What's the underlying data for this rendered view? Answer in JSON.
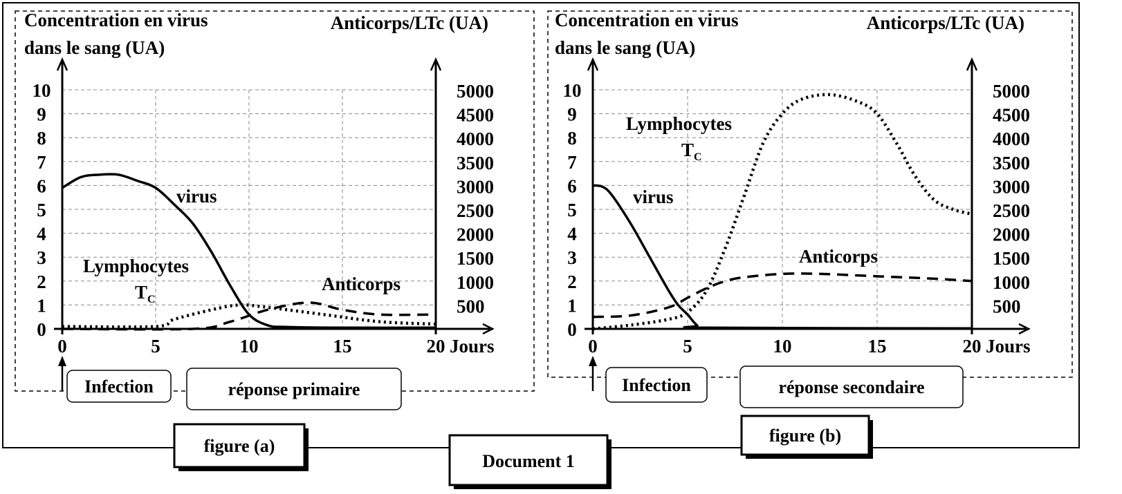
{
  "document_label": "Document 1",
  "chart_data": [
    {
      "type": "line",
      "caption": "figure (a)",
      "ylabel_left": [
        "Concentration en virus",
        "dans le sang (UA)"
      ],
      "ylabel_right": "Anticorps/LTc (UA)",
      "xlabel": "Jours",
      "xlim": [
        0,
        20
      ],
      "ylim_left": [
        0,
        10
      ],
      "ylim_right": [
        0,
        5000
      ],
      "x_ticks": [
        "0",
        "5",
        "10",
        "15",
        "20"
      ],
      "y_left_ticks": [
        "0",
        "1",
        "2",
        "3",
        "4",
        "5",
        "6",
        "7",
        "8",
        "9",
        "10"
      ],
      "y_right_ticks": [
        "500",
        "1000",
        "1500",
        "2000",
        "2500",
        "3000",
        "3500",
        "4000",
        "4500",
        "5000"
      ],
      "grid": true,
      "annotations": {
        "infection": "Infection",
        "phase": "réponse primaire"
      },
      "series": [
        {
          "name": "virus",
          "axis": "left",
          "style": "solid",
          "x": [
            0,
            1,
            2,
            3,
            4,
            5,
            6,
            7,
            8,
            9,
            10,
            11,
            12,
            15,
            20
          ],
          "y": [
            5.9,
            6.35,
            6.45,
            6.45,
            6.2,
            5.9,
            5.2,
            4.4,
            3.2,
            1.8,
            0.6,
            0.15,
            0.08,
            0.05,
            0.05
          ]
        },
        {
          "name": "Lymphocytes",
          "subscript": "C",
          "prefix": "T",
          "axis": "right",
          "style": "dotted",
          "x": [
            0,
            5,
            6,
            8,
            9.5,
            11,
            14,
            17,
            20
          ],
          "y": [
            50,
            50,
            200,
            400,
            500,
            450,
            300,
            150,
            100
          ]
        },
        {
          "name": "Anticorps",
          "axis": "right",
          "style": "dashed",
          "x": [
            0,
            7,
            9,
            11,
            13.2,
            15,
            17,
            20
          ],
          "y": [
            0,
            0,
            150,
            400,
            550,
            400,
            300,
            300
          ]
        }
      ]
    },
    {
      "type": "line",
      "caption": "figure (b)",
      "ylabel_left": [
        "Concentration en virus",
        "dans le sang (UA)"
      ],
      "ylabel_right": "Anticorps/LTc (UA)",
      "xlabel": "Jours",
      "xlim": [
        0,
        20
      ],
      "ylim_left": [
        0,
        10
      ],
      "ylim_right": [
        0,
        5000
      ],
      "x_ticks": [
        "0",
        "5",
        "10",
        "15",
        "20"
      ],
      "y_left_ticks": [
        "0",
        "1",
        "2",
        "3",
        "4",
        "5",
        "6",
        "7",
        "8",
        "9",
        "10"
      ],
      "y_right_ticks": [
        "500",
        "1000",
        "1500",
        "2000",
        "2500",
        "3000",
        "3500",
        "4000",
        "4500",
        "5000"
      ],
      "grid": true,
      "annotations": {
        "infection": "Infection",
        "phase": "réponse secondaire"
      },
      "series": [
        {
          "name": "virus",
          "axis": "left",
          "style": "solid",
          "x": [
            0,
            0.5,
            1,
            2,
            3,
            4,
            4.5,
            5,
            5.5,
            6,
            20
          ],
          "y": [
            6,
            5.95,
            5.6,
            4.4,
            3,
            1.6,
            1.0,
            0.6,
            0.15,
            0.05,
            0.02
          ]
        },
        {
          "name": "Lymphocytes",
          "subscript": "C",
          "prefix": "T",
          "axis": "right",
          "style": "dotted",
          "x": [
            0,
            2,
            4,
            5,
            6,
            7,
            8,
            9,
            10,
            11,
            12.5,
            14,
            15,
            16,
            17,
            18,
            19,
            20
          ],
          "y": [
            0,
            80,
            200,
            350,
            800,
            1700,
            2800,
            3900,
            4500,
            4800,
            4900,
            4750,
            4500,
            3900,
            3200,
            2700,
            2500,
            2400
          ]
        },
        {
          "name": "Anticorps",
          "axis": "right",
          "style": "dashed",
          "x": [
            0,
            2,
            4,
            5,
            6,
            7,
            8,
            10,
            12,
            15,
            18,
            20
          ],
          "y": [
            250,
            280,
            450,
            650,
            850,
            1000,
            1080,
            1150,
            1150,
            1100,
            1050,
            1000
          ]
        }
      ]
    }
  ]
}
